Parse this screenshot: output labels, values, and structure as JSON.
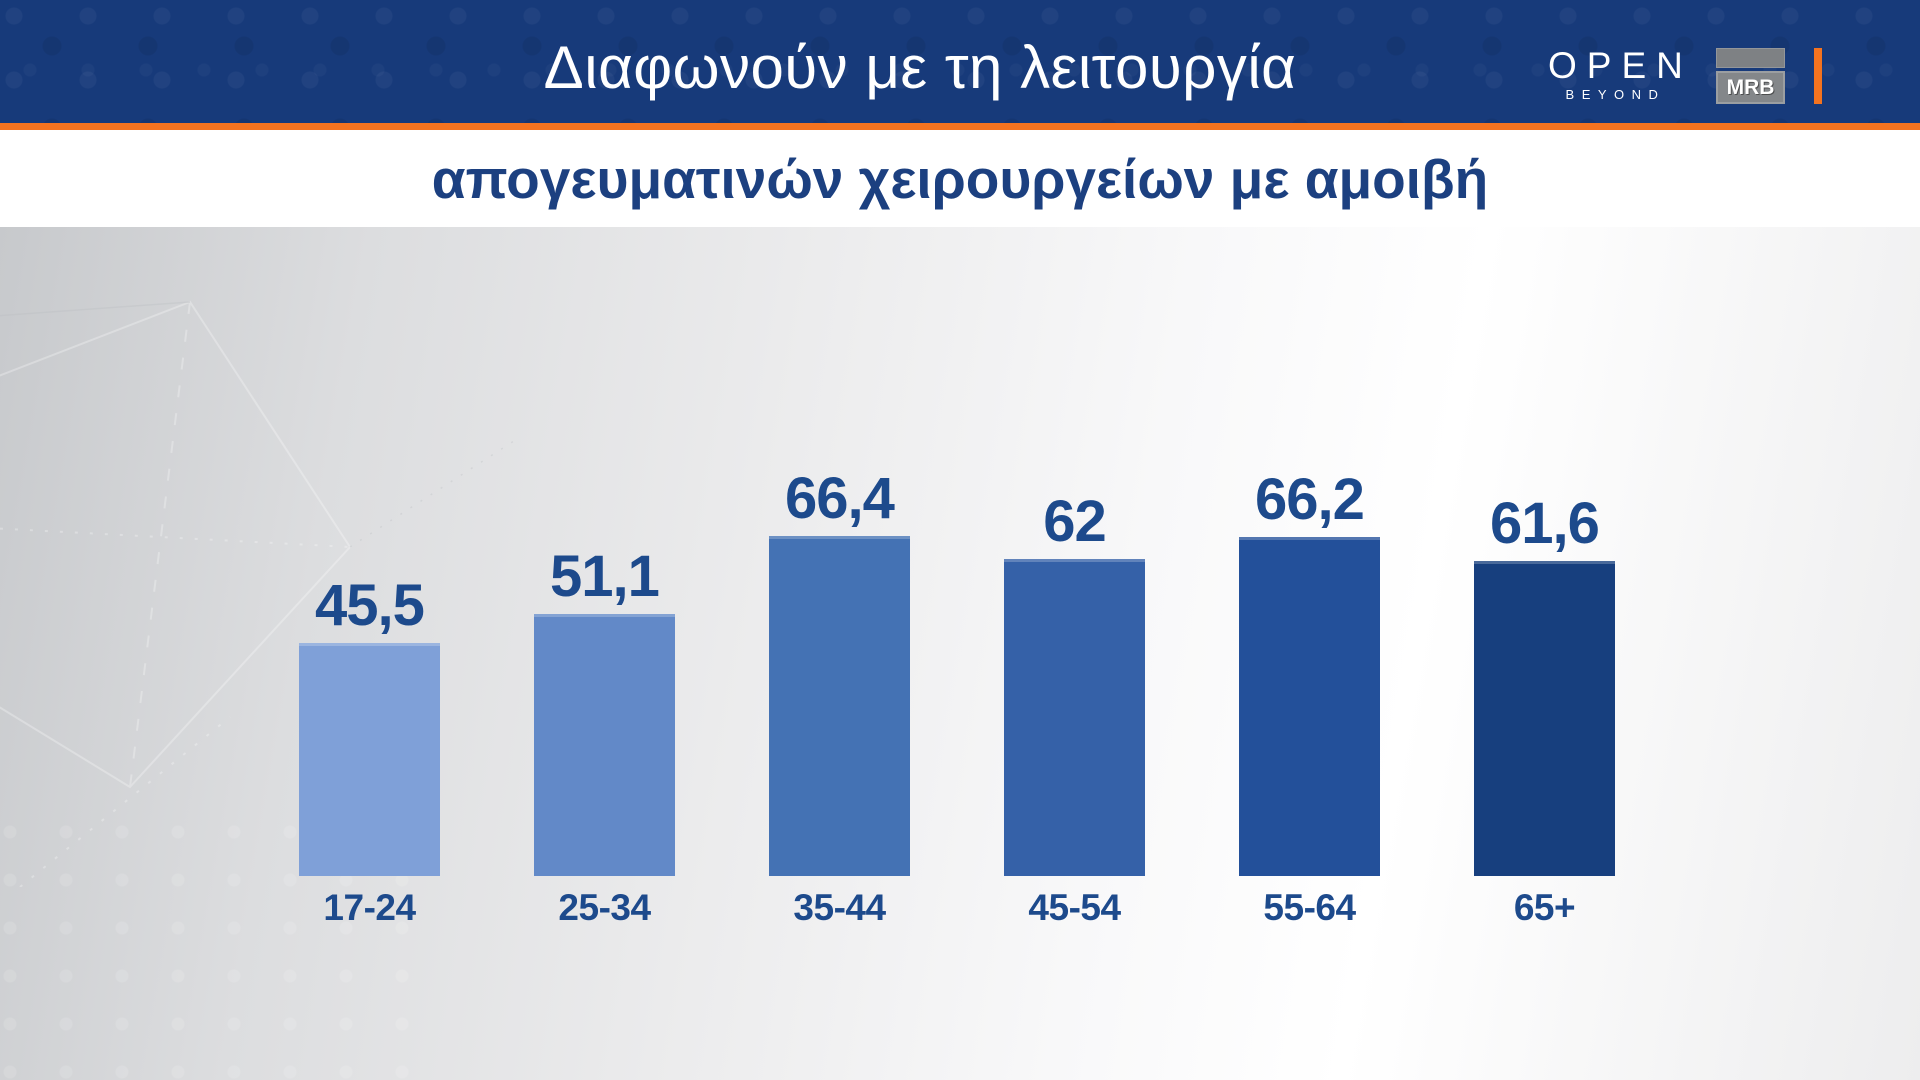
{
  "header": {
    "title": "Διαφωνούν με τη λειτουργία",
    "logos": {
      "open": {
        "name": "OPEN",
        "tagline": "BEYOND"
      },
      "mrb": {
        "label": "MRB"
      }
    }
  },
  "subtitle": "απογευματινών χειρουργείων με αμοιβή",
  "colors": {
    "header_bg": "#173a7a",
    "accent_orange": "#f4731f",
    "title_text": "#ffffff",
    "subtitle_text": "#1c4080",
    "value_text": "#1d4a8c",
    "chart_bg_left": "#c7c9cc",
    "chart_bg_right": "#ededee"
  },
  "chart_data": {
    "type": "bar",
    "title": "Διαφωνούν με τη λειτουργία απογευματινών χειρουργείων με αμοιβή",
    "categories": [
      "17-24",
      "25-34",
      "35-44",
      "45-54",
      "55-64",
      "65+"
    ],
    "values": [
      45.5,
      51.1,
      66.4,
      62,
      66.2,
      61.6
    ],
    "value_labels": [
      "45,5",
      "51,1",
      "66,4",
      "62",
      "66,2",
      "61,6"
    ],
    "bar_colors": [
      "#7fa0d8",
      "#6289c8",
      "#4472b4",
      "#3561a8",
      "#23509a",
      "#173f7e"
    ],
    "unit": "percent",
    "ylim": [
      0,
      100
    ],
    "grid": false,
    "legend": false,
    "xlabel": "",
    "ylabel": ""
  }
}
